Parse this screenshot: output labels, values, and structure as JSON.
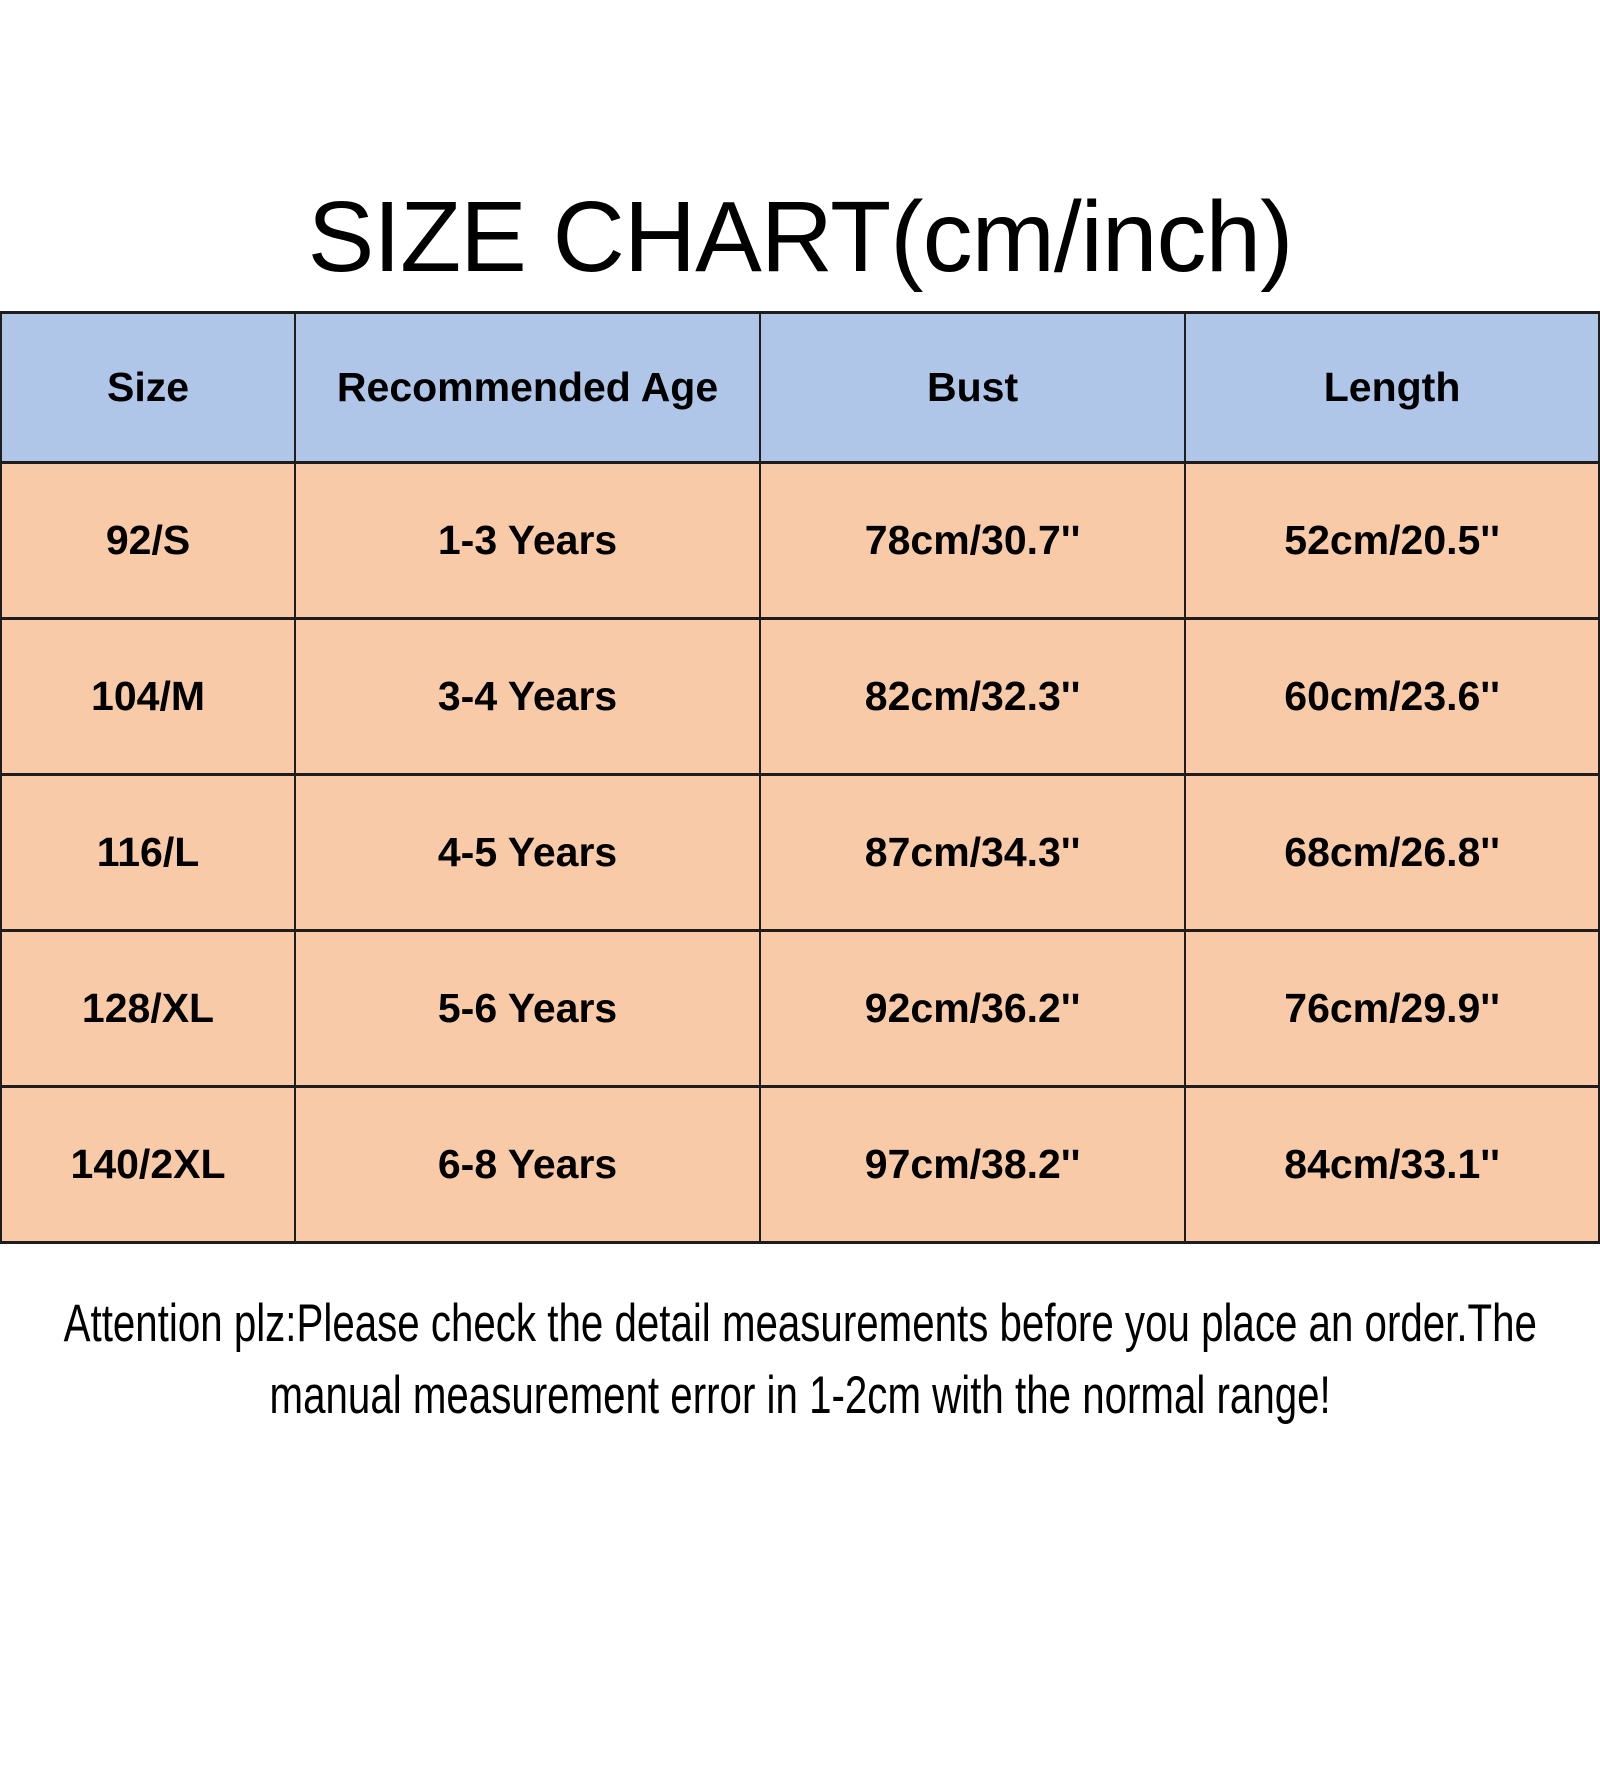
{
  "title": "SIZE CHART(cm/inch)",
  "table": {
    "columns": [
      "Size",
      "Recommended Age",
      "Bust",
      "Length"
    ],
    "rows": [
      [
        "92/S",
        "1-3 Years",
        "78cm/30.7''",
        "52cm/20.5''"
      ],
      [
        "104/M",
        "3-4 Years",
        "82cm/32.3''",
        "60cm/23.6''"
      ],
      [
        "116/L",
        "4-5 Years",
        "87cm/34.3''",
        "68cm/26.8''"
      ],
      [
        "128/XL",
        "5-6 Years",
        "92cm/36.2''",
        "76cm/29.9''"
      ],
      [
        "140/2XL",
        "6-8 Years",
        "97cm/38.2''",
        "84cm/33.1''"
      ]
    ]
  },
  "note": {
    "line1": "Attention plz:Please check the detail measurements before you place an order.The",
    "line2": "manual measurement error in 1-2cm with the normal range!"
  },
  "colors": {
    "page_bg": "#ffffff",
    "header_bg": "#afc6e8",
    "row_bg": "#f8caa8",
    "border": "#1f1d1b",
    "text": "#000000"
  },
  "chart_data": {
    "type": "table",
    "title": "SIZE CHART(cm/inch)",
    "columns": [
      "Size",
      "Recommended Age",
      "Bust",
      "Length"
    ],
    "rows": [
      [
        "92/S",
        "1-3 Years",
        "78cm/30.7''",
        "52cm/20.5''"
      ],
      [
        "104/M",
        "3-4 Years",
        "82cm/32.3''",
        "60cm/23.6''"
      ],
      [
        "116/L",
        "4-5 Years",
        "87cm/34.3''",
        "68cm/26.8''"
      ],
      [
        "128/XL",
        "5-6 Years",
        "92cm/36.2''",
        "76cm/29.9''"
      ],
      [
        "140/2XL",
        "6-8 Years",
        "97cm/38.2''",
        "84cm/33.1''"
      ]
    ],
    "units": "cm/inch",
    "note": "Attention plz:Please check the detail measurements before you place an order.The manual measurement error in 1-2cm with the normal range!",
    "layout": {
      "header_background": "#afc6e8",
      "row_background": "#f8caa8",
      "grid": true
    }
  }
}
